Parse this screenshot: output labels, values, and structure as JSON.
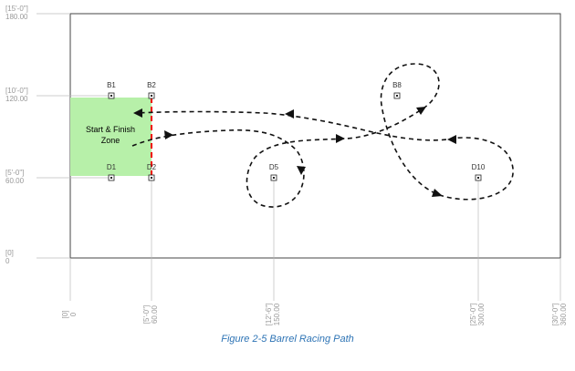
{
  "y_axis": [
    {
      "imperial": "[15'-0\"]",
      "value": "180.00"
    },
    {
      "imperial": "[10'-0\"]",
      "value": "120.00"
    },
    {
      "imperial": "[5'-0\"]",
      "value": "60.00"
    },
    {
      "imperial": "[0]",
      "value": "0"
    }
  ],
  "x_axis": [
    {
      "imperial": "[0]",
      "value": "0"
    },
    {
      "imperial": "[5'-0\"]",
      "value": "60.00"
    },
    {
      "imperial": "[12'-6\"]",
      "value": "150.00"
    },
    {
      "imperial": "[25'-0\"]",
      "value": "300.00"
    },
    {
      "imperial": "[30'-0\"]",
      "value": "360.00"
    }
  ],
  "barrels": [
    "B1",
    "B2",
    "D1",
    "D2",
    "D5",
    "B8",
    "D10"
  ],
  "zone_label": [
    "Start & Finish",
    "Zone"
  ],
  "caption": "Figure 2-5 Barrel Racing Path"
}
